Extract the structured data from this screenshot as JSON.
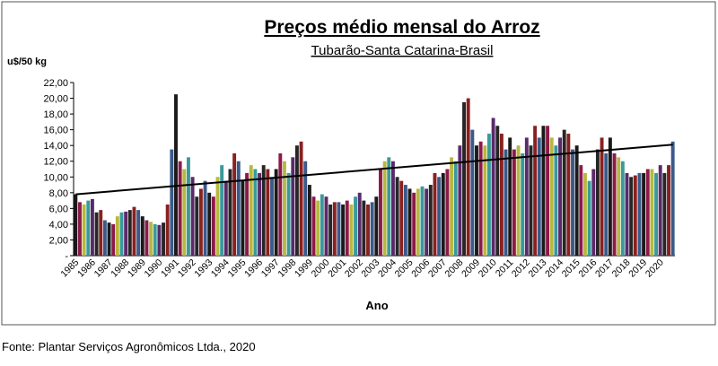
{
  "chart_data": {
    "type": "bar",
    "title": "Preços médio mensal do Arroz",
    "subtitle": "Tubarão-Santa Catarina-Brasil",
    "y_label": "u$/50 kg",
    "x_label": "Ano",
    "source": "Fonte: Plantar Serviços Agronômicos Ltda., 2020",
    "categories": [
      "1985",
      null,
      null,
      null,
      "1986",
      null,
      null,
      null,
      "1987",
      null,
      null,
      null,
      "1988",
      null,
      null,
      null,
      "1989",
      null,
      null,
      null,
      "1990",
      null,
      null,
      null,
      "1991",
      null,
      null,
      null,
      "1992",
      null,
      null,
      null,
      "1993",
      null,
      null,
      null,
      "1994",
      null,
      null,
      null,
      "1995",
      null,
      null,
      null,
      "1996",
      null,
      null,
      null,
      "1997",
      null,
      null,
      null,
      "1998",
      null,
      null,
      null,
      "1999",
      null,
      null,
      null,
      "2000",
      null,
      null,
      null,
      "2001",
      null,
      null,
      null,
      "2002",
      null,
      null,
      null,
      "2003",
      null,
      null,
      null,
      "2004",
      null,
      null,
      null,
      "2005",
      null,
      null,
      null,
      "2006",
      null,
      null,
      null,
      "2007",
      null,
      null,
      null,
      "2008",
      null,
      null,
      null,
      "2009",
      null,
      null,
      null,
      "2010",
      null,
      null,
      null,
      "2011",
      null,
      null,
      null,
      "2012",
      null,
      null,
      null,
      "2013",
      null,
      null,
      null,
      "2014",
      null,
      null,
      null,
      "2015",
      null,
      null,
      null,
      "2016",
      null,
      null,
      null,
      "2017",
      null,
      null,
      null,
      "2018",
      null,
      null,
      null,
      "2019",
      null,
      null,
      null,
      "2020",
      null,
      null,
      null
    ],
    "values": [
      7.8,
      6.8,
      6.5,
      7.0,
      7.2,
      5.5,
      5.8,
      4.5,
      4.2,
      4.0,
      5.0,
      5.5,
      5.6,
      5.8,
      6.2,
      5.8,
      5.0,
      4.5,
      4.3,
      4.0,
      3.9,
      4.2,
      6.5,
      13.5,
      20.5,
      12.0,
      11.0,
      12.5,
      10.0,
      7.5,
      8.5,
      9.5,
      8.0,
      7.5,
      10.0,
      11.5,
      9.5,
      11.0,
      13.0,
      12.0,
      9.5,
      10.5,
      11.5,
      11.0,
      10.5,
      11.5,
      11.0,
      10.0,
      11.0,
      13.0,
      12.0,
      10.5,
      12.5,
      14.0,
      14.5,
      12.0,
      9.0,
      7.5,
      7.0,
      7.8,
      7.5,
      6.5,
      6.8,
      6.8,
      6.5,
      7.0,
      6.5,
      7.5,
      8.0,
      7.0,
      6.5,
      6.8,
      7.5,
      11.0,
      12.0,
      12.5,
      12.0,
      10.0,
      9.5,
      9.0,
      8.5,
      8.0,
      8.5,
      8.8,
      8.5,
      9.0,
      10.5,
      10.0,
      10.5,
      11.0,
      12.5,
      12.0,
      14.0,
      19.5,
      20.0,
      16.0,
      14.0,
      14.5,
      14.0,
      15.5,
      17.5,
      16.5,
      15.5,
      13.5,
      15.0,
      13.5,
      14.0,
      13.0,
      15.0,
      14.0,
      16.5,
      15.0,
      16.5,
      16.5,
      15.0,
      14.0,
      15.0,
      16.0,
      15.5,
      13.5,
      14.0,
      11.5,
      10.5,
      9.5,
      11.0,
      13.5,
      15.0,
      13.0,
      15.0,
      13.0,
      12.5,
      12.0,
      10.5,
      10.0,
      10.2,
      10.5,
      10.5,
      11.0,
      11.0,
      10.5,
      11.5,
      10.5,
      11.5,
      14.5
    ],
    "colors": [
      "#1a1a1a",
      "#8b1a4a",
      "#b8b840",
      "#3a9a9a",
      "#5a2a6a",
      "#262626",
      "#8a2020",
      "#3a5a8a"
    ],
    "trend": [
      7.8,
      14.1
    ],
    "ylim": [
      0,
      22
    ],
    "yticks": [
      {
        "value": 0,
        "label": "-"
      },
      {
        "value": 2,
        "label": "2,00"
      },
      {
        "value": 4,
        "label": "4,00"
      },
      {
        "value": 6,
        "label": "6,00"
      },
      {
        "value": 8,
        "label": "8,00"
      },
      {
        "value": 10,
        "label": "10,00"
      },
      {
        "value": 12,
        "label": "12,00"
      },
      {
        "value": 14,
        "label": "14,00"
      },
      {
        "value": 16,
        "label": "16,00"
      },
      {
        "value": 18,
        "label": "18,00"
      },
      {
        "value": 20,
        "label": "20,00"
      },
      {
        "value": 22,
        "label": "22,00"
      }
    ]
  }
}
